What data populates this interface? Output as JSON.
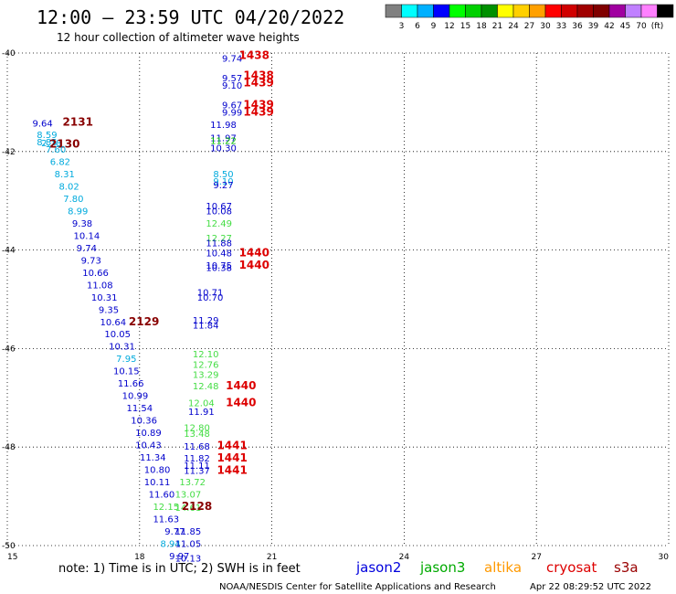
{
  "header": {
    "title": "12:00 — 23:59 UTC 04/20/2022",
    "subtitle": "12 hour collection of altimeter wave heights"
  },
  "colorbar": {
    "colors": [
      "#808080",
      "#00ffff",
      "#00b0ff",
      "#0000ff",
      "#00ff00",
      "#00d000",
      "#009000",
      "#ffff00",
      "#ffd000",
      "#ffa000",
      "#ff0000",
      "#d00000",
      "#a00000",
      "#800000",
      "#a000a0",
      "#c080ff",
      "#ff80ff",
      "#000000"
    ],
    "labels": [
      "3",
      "6",
      "9",
      "12",
      "15",
      "18",
      "21",
      "24",
      "27",
      "30",
      "33",
      "36",
      "39",
      "42",
      "45",
      "70",
      "(ft)"
    ]
  },
  "footer": {
    "note": "note:  1) Time is in UTC;  2) SWH is in feet",
    "credit": "NOAA/NESDIS Center for Satellite Applications and Research",
    "timestamp": "Apr 22 08:29:52 UTC 2022"
  },
  "legend": [
    {
      "name": "jason2",
      "color": "#0000dd"
    },
    {
      "name": "jason3",
      "color": "#00aa00"
    },
    {
      "name": "altika",
      "color": "#ff9900"
    },
    {
      "name": "cryosat",
      "color": "#dd0000"
    },
    {
      "name": "s3a",
      "color": "#990000"
    }
  ],
  "chart_data": {
    "type": "scatter",
    "xlim": [
      15,
      30
    ],
    "ylim": [
      -50,
      -40
    ],
    "x_ticks": [
      "15",
      "18",
      "21",
      "24",
      "27",
      "30"
    ],
    "y_ticks": [
      "-40",
      "-42",
      "-44",
      "-46",
      "-48",
      "-50"
    ],
    "grid": true,
    "points": [
      {
        "x": 20.1,
        "y": -40.1,
        "label": "9.74",
        "color": "#0000cc"
      },
      {
        "x": 20.6,
        "y": -40.05,
        "label": "1438",
        "color": "#dd0000",
        "bold": true
      },
      {
        "x": 20.1,
        "y": -40.5,
        "label": "9.57",
        "color": "#0000cc"
      },
      {
        "x": 20.1,
        "y": -40.65,
        "label": "9.10",
        "color": "#0000cc"
      },
      {
        "x": 20.7,
        "y": -40.45,
        "label": "1438",
        "color": "#dd0000",
        "bold": true
      },
      {
        "x": 20.7,
        "y": -40.6,
        "label": "1439",
        "color": "#dd0000",
        "bold": true
      },
      {
        "x": 20.1,
        "y": -41.05,
        "label": "9.67",
        "color": "#0000cc"
      },
      {
        "x": 20.1,
        "y": -41.2,
        "label": "9.99",
        "color": "#0000cc"
      },
      {
        "x": 20.7,
        "y": -41.05,
        "label": "1439",
        "color": "#dd0000",
        "bold": true
      },
      {
        "x": 20.7,
        "y": -41.2,
        "label": "1439",
        "color": "#dd0000",
        "bold": true
      },
      {
        "x": 19.9,
        "y": -41.45,
        "label": "11.98",
        "color": "#0000cc"
      },
      {
        "x": 19.9,
        "y": -41.72,
        "label": "11.97",
        "color": "#0000cc"
      },
      {
        "x": 19.9,
        "y": -41.77,
        "label": "11.22",
        "color": "#00bb00"
      },
      {
        "x": 19.9,
        "y": -41.92,
        "label": "10.30",
        "color": "#0000cc"
      },
      {
        "x": 19.9,
        "y": -42.45,
        "label": "8.50",
        "color": "#00aadd"
      },
      {
        "x": 19.9,
        "y": -42.6,
        "label": "9.10",
        "color": "#00aadd"
      },
      {
        "x": 19.9,
        "y": -42.67,
        "label": "9.27",
        "color": "#0000cc"
      },
      {
        "x": 19.8,
        "y": -43.1,
        "label": "10.67",
        "color": "#0000cc"
      },
      {
        "x": 19.8,
        "y": -43.2,
        "label": "10.08",
        "color": "#0000cc"
      },
      {
        "x": 19.8,
        "y": -43.45,
        "label": "12.49",
        "color": "#44dd44"
      },
      {
        "x": 19.8,
        "y": -43.75,
        "label": "12.27",
        "color": "#44dd44"
      },
      {
        "x": 19.8,
        "y": -43.85,
        "label": "11.88",
        "color": "#0000cc"
      },
      {
        "x": 19.8,
        "y": -44.05,
        "label": "10.48",
        "color": "#0000cc"
      },
      {
        "x": 19.8,
        "y": -44.3,
        "label": "10.75",
        "color": "#0000cc"
      },
      {
        "x": 19.8,
        "y": -44.35,
        "label": "10.38",
        "color": "#0000cc"
      },
      {
        "x": 20.6,
        "y": -44.05,
        "label": "1440",
        "color": "#dd0000",
        "bold": true
      },
      {
        "x": 20.6,
        "y": -44.3,
        "label": "1440",
        "color": "#dd0000",
        "bold": true
      },
      {
        "x": 19.6,
        "y": -44.85,
        "label": "10.71",
        "color": "#0000cc"
      },
      {
        "x": 19.6,
        "y": -44.95,
        "label": "10.70",
        "color": "#0000cc"
      },
      {
        "x": 19.5,
        "y": -45.42,
        "label": "11.29",
        "color": "#0000cc"
      },
      {
        "x": 19.5,
        "y": -45.52,
        "label": "11.84",
        "color": "#0000cc"
      },
      {
        "x": 19.5,
        "y": -46.1,
        "label": "12.10",
        "color": "#44dd44"
      },
      {
        "x": 19.5,
        "y": -46.32,
        "label": "12.76",
        "color": "#44dd44"
      },
      {
        "x": 19.5,
        "y": -46.52,
        "label": "13.29",
        "color": "#44dd44"
      },
      {
        "x": 19.5,
        "y": -46.75,
        "label": "12.48",
        "color": "#44dd44"
      },
      {
        "x": 20.3,
        "y": -46.75,
        "label": "1440",
        "color": "#dd0000",
        "bold": true
      },
      {
        "x": 19.4,
        "y": -47.1,
        "label": "12.04",
        "color": "#44dd44"
      },
      {
        "x": 19.4,
        "y": -47.27,
        "label": "11.91",
        "color": "#0000cc"
      },
      {
        "x": 20.3,
        "y": -47.1,
        "label": "1440",
        "color": "#dd0000",
        "bold": true
      },
      {
        "x": 19.3,
        "y": -47.6,
        "label": "12.80",
        "color": "#44dd44"
      },
      {
        "x": 19.3,
        "y": -47.72,
        "label": "13.48",
        "color": "#44dd44"
      },
      {
        "x": 19.3,
        "y": -47.98,
        "label": "11.68",
        "color": "#0000cc"
      },
      {
        "x": 19.3,
        "y": -48.22,
        "label": "11.82",
        "color": "#0000cc"
      },
      {
        "x": 19.3,
        "y": -48.37,
        "label": "11.11",
        "color": "#0000cc"
      },
      {
        "x": 19.3,
        "y": -48.47,
        "label": "11.37",
        "color": "#0000cc"
      },
      {
        "x": 20.1,
        "y": -47.97,
        "label": "1441",
        "color": "#dd0000",
        "bold": true
      },
      {
        "x": 20.1,
        "y": -48.22,
        "label": "1441",
        "color": "#dd0000",
        "bold": true
      },
      {
        "x": 20.1,
        "y": -48.47,
        "label": "1441",
        "color": "#dd0000",
        "bold": true
      },
      {
        "x": 19.2,
        "y": -48.7,
        "label": "13.72",
        "color": "#44dd44"
      },
      {
        "x": 19.1,
        "y": -48.95,
        "label": "13.07",
        "color": "#44dd44"
      },
      {
        "x": 19.1,
        "y": -49.22,
        "label": "14.61",
        "color": "#44dd44"
      },
      {
        "x": 15.8,
        "y": -41.42,
        "label": "9.64",
        "color": "#0000cc"
      },
      {
        "x": 16.6,
        "y": -41.4,
        "label": "2131",
        "color": "#880000",
        "bold": true
      },
      {
        "x": 15.9,
        "y": -41.65,
        "label": "8.59",
        "color": "#00aadd"
      },
      {
        "x": 15.9,
        "y": -41.8,
        "label": "8.85",
        "color": "#00aadd"
      },
      {
        "x": 16.0,
        "y": -41.82,
        "label": "2.78",
        "color": "#00aadd"
      },
      {
        "x": 16.3,
        "y": -41.85,
        "label": "2130",
        "color": "#880000",
        "bold": true
      },
      {
        "x": 16.1,
        "y": -41.95,
        "label": "7.60",
        "color": "#00aadd"
      },
      {
        "x": 16.2,
        "y": -42.2,
        "label": "6.82",
        "color": "#00aadd"
      },
      {
        "x": 16.3,
        "y": -42.45,
        "label": "8.31",
        "color": "#00aadd"
      },
      {
        "x": 16.4,
        "y": -42.7,
        "label": "8.02",
        "color": "#00aadd"
      },
      {
        "x": 16.5,
        "y": -42.95,
        "label": "7.80",
        "color": "#00aadd"
      },
      {
        "x": 16.6,
        "y": -43.2,
        "label": "8.99",
        "color": "#00aadd"
      },
      {
        "x": 16.7,
        "y": -43.45,
        "label": "9.38",
        "color": "#0000cc"
      },
      {
        "x": 16.8,
        "y": -43.7,
        "label": "10.14",
        "color": "#0000cc"
      },
      {
        "x": 16.8,
        "y": -43.95,
        "label": "9.74",
        "color": "#0000cc"
      },
      {
        "x": 16.9,
        "y": -44.2,
        "label": "9.73",
        "color": "#0000cc"
      },
      {
        "x": 17.0,
        "y": -44.45,
        "label": "10.66",
        "color": "#0000cc"
      },
      {
        "x": 17.1,
        "y": -44.7,
        "label": "11.08",
        "color": "#0000cc"
      },
      {
        "x": 17.2,
        "y": -44.95,
        "label": "10.31",
        "color": "#0000cc"
      },
      {
        "x": 17.3,
        "y": -45.2,
        "label": "9.35",
        "color": "#0000cc"
      },
      {
        "x": 17.4,
        "y": -45.45,
        "label": "10.64",
        "color": "#0000cc"
      },
      {
        "x": 18.1,
        "y": -45.45,
        "label": "2129",
        "color": "#880000",
        "bold": true
      },
      {
        "x": 17.5,
        "y": -45.7,
        "label": "10.05",
        "color": "#0000cc"
      },
      {
        "x": 17.6,
        "y": -45.95,
        "label": "10.31",
        "color": "#0000cc"
      },
      {
        "x": 17.7,
        "y": -46.2,
        "label": "7.95",
        "color": "#00aadd"
      },
      {
        "x": 17.7,
        "y": -46.45,
        "label": "10.15",
        "color": "#0000cc"
      },
      {
        "x": 17.8,
        "y": -46.7,
        "label": "11.66",
        "color": "#0000cc"
      },
      {
        "x": 17.9,
        "y": -46.95,
        "label": "10.99",
        "color": "#0000cc"
      },
      {
        "x": 18.0,
        "y": -47.2,
        "label": "11.54",
        "color": "#0000cc"
      },
      {
        "x": 18.1,
        "y": -47.45,
        "label": "10.36",
        "color": "#0000cc"
      },
      {
        "x": 18.2,
        "y": -47.7,
        "label": "10.89",
        "color": "#0000cc"
      },
      {
        "x": 18.2,
        "y": -47.95,
        "label": "10.43",
        "color": "#0000cc"
      },
      {
        "x": 18.3,
        "y": -48.2,
        "label": "11.34",
        "color": "#0000cc"
      },
      {
        "x": 18.4,
        "y": -48.45,
        "label": "10.80",
        "color": "#0000cc"
      },
      {
        "x": 18.4,
        "y": -48.7,
        "label": "10.11",
        "color": "#0000cc"
      },
      {
        "x": 18.5,
        "y": -48.95,
        "label": "11.60",
        "color": "#0000cc"
      },
      {
        "x": 18.6,
        "y": -49.2,
        "label": "12.15",
        "color": "#44dd44"
      },
      {
        "x": 19.3,
        "y": -49.2,
        "label": "2128",
        "color": "#880000",
        "bold": true
      },
      {
        "x": 18.6,
        "y": -49.45,
        "label": "11.63",
        "color": "#0000cc"
      },
      {
        "x": 18.8,
        "y": -49.7,
        "label": "9.77",
        "color": "#0000cc"
      },
      {
        "x": 19.1,
        "y": -49.7,
        "label": "11.85",
        "color": "#0000cc"
      },
      {
        "x": 18.7,
        "y": -49.95,
        "label": "8.94",
        "color": "#00aadd"
      },
      {
        "x": 19.1,
        "y": -49.95,
        "label": "11.05",
        "color": "#0000cc"
      },
      {
        "x": 18.9,
        "y": -50.2,
        "label": "9.97",
        "color": "#0000cc"
      },
      {
        "x": 19.1,
        "y": -50.25,
        "label": "10.13",
        "color": "#0000cc"
      }
    ]
  }
}
